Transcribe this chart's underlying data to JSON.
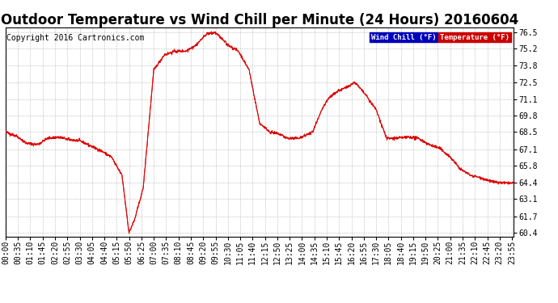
{
  "title": "Outdoor Temperature vs Wind Chill per Minute (24 Hours) 20160604",
  "copyright": "Copyright 2016 Cartronics.com",
  "legend_labels": [
    "Wind Chill (°F)",
    "Temperature (°F)"
  ],
  "legend_colors": [
    "#0000bb",
    "#cc0000"
  ],
  "line_color": "#dd0000",
  "bg_color": "#ffffff",
  "plot_bg_color": "#ffffff",
  "grid_color": "#bbbbbb",
  "yticks": [
    60.4,
    61.7,
    63.1,
    64.4,
    65.8,
    67.1,
    68.5,
    69.8,
    71.1,
    72.5,
    73.8,
    75.2,
    76.5
  ],
  "ylim": [
    60.1,
    76.9
  ],
  "title_fontsize": 12,
  "copyright_fontsize": 7,
  "tick_fontsize": 7,
  "keypoints_h": [
    0,
    0.5,
    1.0,
    1.5,
    2.0,
    2.5,
    3.0,
    3.5,
    4.0,
    4.5,
    5.0,
    5.5,
    5.83,
    6.1,
    6.5,
    7.0,
    7.5,
    8.0,
    8.5,
    9.0,
    9.5,
    9.92,
    10.2,
    10.5,
    11.0,
    11.5,
    12.0,
    12.5,
    13.0,
    13.3,
    13.8,
    14.0,
    14.5,
    15.0,
    15.3,
    15.7,
    16.0,
    16.3,
    16.5,
    17.0,
    17.5,
    18.0,
    18.5,
    19.0,
    19.5,
    20.0,
    20.5,
    21.0,
    21.5,
    22.0,
    22.5,
    23.0,
    23.5,
    24.0
  ],
  "keypoints_v": [
    68.5,
    68.2,
    67.6,
    67.5,
    68.0,
    68.1,
    67.9,
    67.8,
    67.4,
    67.0,
    66.5,
    65.0,
    60.4,
    61.5,
    64.0,
    73.5,
    74.7,
    75.0,
    75.0,
    75.5,
    76.4,
    76.5,
    76.0,
    75.5,
    75.0,
    73.5,
    69.2,
    68.5,
    68.3,
    68.0,
    68.0,
    68.1,
    68.5,
    70.5,
    71.3,
    71.8,
    72.0,
    72.3,
    72.5,
    71.5,
    70.3,
    68.0,
    68.0,
    68.1,
    68.0,
    67.5,
    67.2,
    66.5,
    65.5,
    65.0,
    64.8,
    64.5,
    64.4,
    64.4
  ]
}
